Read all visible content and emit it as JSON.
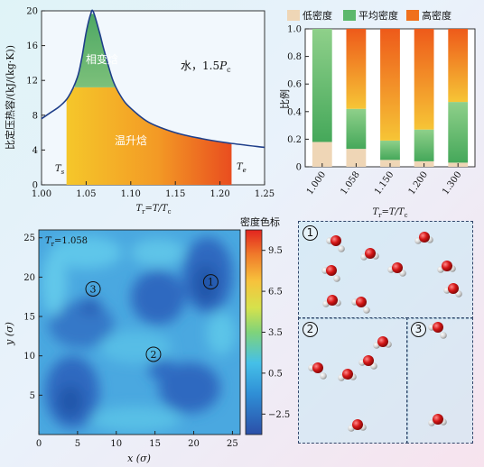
{
  "chart_data": [
    {
      "type": "line",
      "xlabel_sym": "T",
      "xlabel_sub": "r",
      "xlabel_rest": "=T/T",
      "xlabel_sub2": "c",
      "ylabel": "比定压热容/(kJ/(kg·K))",
      "xlim": [
        1.0,
        1.25
      ],
      "ylim": [
        0,
        20
      ],
      "xticks": [
        "1.00",
        "1.05",
        "1.10",
        "1.15",
        "1.20",
        "1.25"
      ],
      "yticks": [
        "0",
        "4",
        "8",
        "12",
        "16",
        "20"
      ],
      "x": [
        1.0,
        1.01,
        1.02,
        1.03,
        1.04,
        1.045,
        1.05,
        1.055,
        1.058,
        1.065,
        1.07,
        1.08,
        1.09,
        1.1,
        1.12,
        1.15,
        1.18,
        1.21,
        1.25
      ],
      "y": [
        7.6,
        8.3,
        9.0,
        10.1,
        12.3,
        14.5,
        17.5,
        19.6,
        19.9,
        17.5,
        15.5,
        12.0,
        10.0,
        8.8,
        7.2,
        6.0,
        5.3,
        4.8,
        4.3
      ],
      "regions": {
        "phase_label": "相变焓",
        "heat_label": "温升焓",
        "phase_band_y": 11.2
      },
      "Ts_x": 1.028,
      "Tc_x": 1.213,
      "annotation": "水，1.5",
      "annotation_sym": "P",
      "annotation_sub": "c",
      "ts_label": "T",
      "ts_sub": "s",
      "tc_label": "T",
      "tc_sub": "e"
    },
    {
      "type": "bar",
      "stacked": true,
      "categories": [
        "1.000",
        "1.058",
        "1.150",
        "1.200",
        "1.300"
      ],
      "series": [
        {
          "name": "低密度",
          "color": "#efd6b6",
          "values": [
            0.18,
            0.13,
            0.05,
            0.04,
            0.03
          ]
        },
        {
          "name": "平均密度",
          "color": "#5cb86c",
          "values": [
            0.82,
            0.29,
            0.14,
            0.23,
            0.44
          ]
        },
        {
          "name": "高密度",
          "color": "#f0701c",
          "values": [
            0.0,
            0.58,
            0.81,
            0.73,
            0.53
          ]
        }
      ],
      "ylabel": "比例",
      "ylim": [
        0,
        1.0
      ],
      "yticks": [
        "0",
        "0.2",
        "0.4",
        "0.6",
        "0.8",
        "1.0"
      ],
      "xlabel_sym": "T",
      "xlabel_sub": "r",
      "xlabel_rest": "=T/T",
      "xlabel_sub2": "c"
    },
    {
      "type": "heatmap",
      "title_sym": "T",
      "title_sub": "r",
      "title_rest": "=1.058",
      "xlabel": "x (σ)",
      "ylabel": "y (σ)",
      "xlim": [
        0,
        26
      ],
      "ylim": [
        0,
        26
      ],
      "xticks": [
        "0",
        "5",
        "10",
        "15",
        "20",
        "25"
      ],
      "yticks": [
        "5",
        "10",
        "15",
        "20",
        "25"
      ],
      "colorbar_title": "密度色标",
      "colorbar_ticks": [
        "9.5",
        "6.5",
        "3.5",
        "0.5",
        "−2.5"
      ],
      "colorbar_range": [
        -4.0,
        11.0
      ],
      "region_labels": [
        "1",
        "2",
        "3"
      ]
    }
  ],
  "molecule_panels": {
    "labels": [
      "1",
      "2",
      "3"
    ]
  },
  "colors": {
    "low": "#2a57b0",
    "mid": "#43bfe6",
    "high": "#e62f23",
    "curve": "#1f3f8a"
  }
}
